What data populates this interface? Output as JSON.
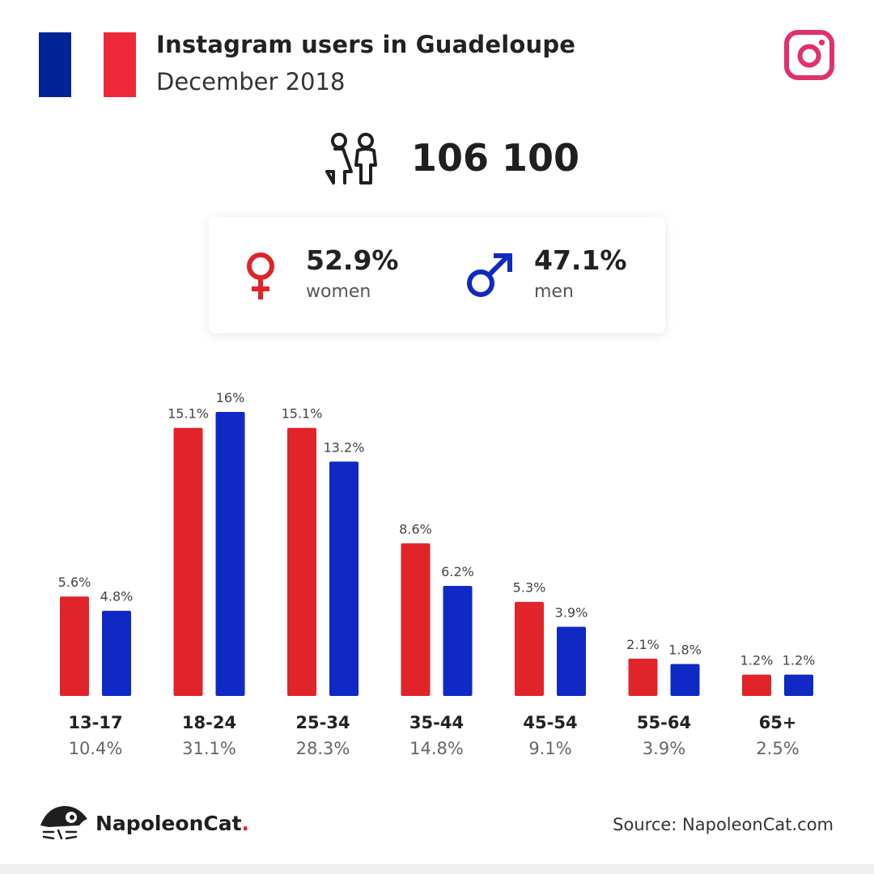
{
  "header": {
    "title": "Instagram users in Guadeloupe",
    "subtitle": "December 2018",
    "flag_colors": [
      "#002395",
      "#FFFFFF",
      "#ED2939"
    ],
    "social_icon": "instagram-icon",
    "social_color": "#E1306C"
  },
  "total": {
    "icon": "people-icon",
    "value": "106 100"
  },
  "gender": {
    "women": {
      "icon": "female-symbol-icon",
      "pct": "52.9%",
      "label": "women",
      "color": "#E0242A"
    },
    "men": {
      "icon": "male-symbol-icon",
      "pct": "47.1%",
      "label": "men",
      "color": "#1028C4"
    }
  },
  "chart_data": {
    "type": "bar",
    "categories": [
      "13-17",
      "18-24",
      "25-34",
      "35-44",
      "45-54",
      "55-64",
      "65+"
    ],
    "category_totals": [
      "10.4%",
      "31.1%",
      "28.3%",
      "14.8%",
      "9.1%",
      "3.9%",
      "2.5%"
    ],
    "series": [
      {
        "values": [
          5.6,
          15.1,
          15.1,
          8.6,
          5.3,
          2.1,
          1.2
        ],
        "labels": [
          "5.6%",
          "15.1%",
          "15.1%",
          "8.6%",
          "5.3%",
          "2.1%",
          "1.2%"
        ],
        "color": "#E0242A"
      },
      {
        "values": [
          4.8,
          16,
          13.2,
          6.2,
          3.9,
          1.8,
          1.2
        ],
        "labels": [
          "4.8%",
          "16%",
          "13.2%",
          "6.2%",
          "3.9%",
          "1.8%",
          "1.2%"
        ],
        "color": "#1028C4"
      }
    ],
    "ylim": [
      0,
      16
    ],
    "grid": false,
    "legend": "none"
  },
  "footer": {
    "brand_name": "NapoleonCat",
    "brand_dot": ".",
    "source": "Source: NapoleonCat.com"
  }
}
